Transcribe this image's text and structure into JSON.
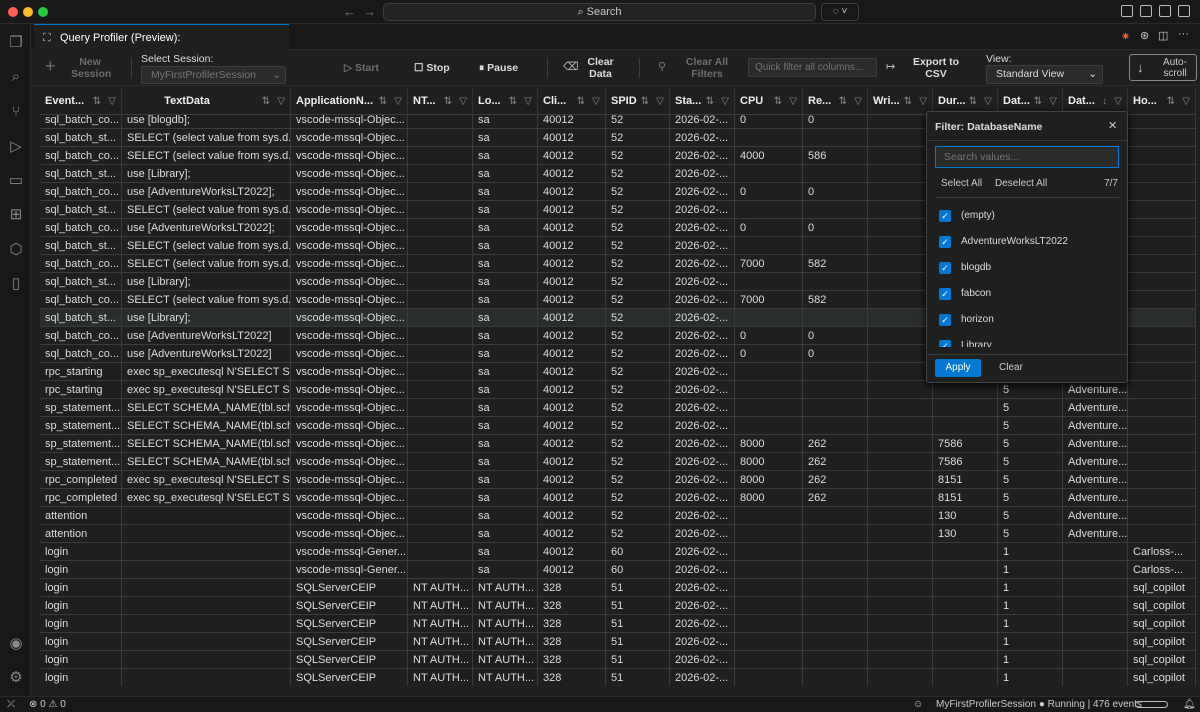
{
  "titlebar": {
    "search_label": "Search",
    "search_icon": "magnifier"
  },
  "tab": {
    "title": "Query Profiler (Preview): MyFirstProfilerSession",
    "close": "×"
  },
  "toolbar": {
    "new_session": "New Session",
    "select_session_label": "Select Session:",
    "selected_session": "MyFirstProfilerSession",
    "start": "Start",
    "stop": "Stop",
    "pause": "Pause",
    "clear_data": "Clear Data",
    "clear_all_filters": "Clear All Filters",
    "quick_filter_placeholder": "Quick filter all columns...",
    "export_csv": "Export to CSV",
    "view_label": "View:",
    "view_value": "Standard View",
    "autoscroll": "Auto-scroll"
  },
  "columns": [
    "Event...",
    "TextData",
    "ApplicationN...",
    "NT...",
    "Lo...",
    "Cli...",
    "SPID",
    "Sta...",
    "CPU",
    "Re...",
    "Wri...",
    "Dur...",
    "Dat...",
    "Dat...",
    "Ho..."
  ],
  "rows": [
    [
      "sql_batch_co...",
      "use [blogdb];",
      "vscode-mssql-Objec...",
      "",
      "sa",
      "40012",
      "52",
      "2026-02-...",
      "0",
      "0",
      "",
      "",
      "",
      "",
      ""
    ],
    [
      "sql_batch_st...",
      "SELECT (select value from sys.d...",
      "vscode-mssql-Objec...",
      "",
      "sa",
      "40012",
      "52",
      "2026-02-...",
      "",
      "",
      "",
      "",
      "",
      "",
      ""
    ],
    [
      "sql_batch_co...",
      "SELECT (select value from sys.d...",
      "vscode-mssql-Objec...",
      "",
      "sa",
      "40012",
      "52",
      "2026-02-...",
      "4000",
      "586",
      "",
      "",
      "",
      "",
      ""
    ],
    [
      "sql_batch_st...",
      "use [Library];",
      "vscode-mssql-Objec...",
      "",
      "sa",
      "40012",
      "52",
      "2026-02-...",
      "",
      "",
      "",
      "",
      "",
      "",
      ""
    ],
    [
      "sql_batch_co...",
      "use [AdventureWorksLT2022];",
      "vscode-mssql-Objec...",
      "",
      "sa",
      "40012",
      "52",
      "2026-02-...",
      "0",
      "0",
      "",
      "",
      "",
      "",
      ""
    ],
    [
      "sql_batch_st...",
      "SELECT (select value from sys.d...",
      "vscode-mssql-Objec...",
      "",
      "sa",
      "40012",
      "52",
      "2026-02-...",
      "",
      "",
      "",
      "",
      "",
      "",
      ""
    ],
    [
      "sql_batch_co...",
      "use [AdventureWorksLT2022];",
      "vscode-mssql-Objec...",
      "",
      "sa",
      "40012",
      "52",
      "2026-02-...",
      "0",
      "0",
      "",
      "",
      "",
      "",
      ""
    ],
    [
      "sql_batch_st...",
      "SELECT (select value from sys.d...",
      "vscode-mssql-Objec...",
      "",
      "sa",
      "40012",
      "52",
      "2026-02-...",
      "",
      "",
      "",
      "",
      "",
      "",
      ""
    ],
    [
      "sql_batch_co...",
      "SELECT (select value from sys.d...",
      "vscode-mssql-Objec...",
      "",
      "sa",
      "40012",
      "52",
      "2026-02-...",
      "7000",
      "582",
      "",
      "",
      "",
      "",
      ""
    ],
    [
      "sql_batch_st...",
      "use [Library];",
      "vscode-mssql-Objec...",
      "",
      "sa",
      "40012",
      "52",
      "2026-02-...",
      "",
      "",
      "",
      "",
      "",
      "",
      ""
    ],
    [
      "sql_batch_co...",
      "SELECT (select value from sys.d...",
      "vscode-mssql-Objec...",
      "",
      "sa",
      "40012",
      "52",
      "2026-02-...",
      "7000",
      "582",
      "",
      "",
      "",
      "",
      ""
    ],
    [
      "sql_batch_st...",
      "use [Library];",
      "vscode-mssql-Objec...",
      "",
      "sa",
      "40012",
      "52",
      "2026-02-...",
      "",
      "",
      "",
      "",
      "",
      "",
      ""
    ],
    [
      "sql_batch_co...",
      "use [AdventureWorksLT2022]",
      "vscode-mssql-Objec...",
      "",
      "sa",
      "40012",
      "52",
      "2026-02-...",
      "0",
      "0",
      "",
      "",
      "",
      "",
      ""
    ],
    [
      "sql_batch_co...",
      "use [AdventureWorksLT2022]",
      "vscode-mssql-Objec...",
      "",
      "sa",
      "40012",
      "52",
      "2026-02-...",
      "0",
      "0",
      "",
      "",
      "",
      "",
      ""
    ],
    [
      "rpc_starting",
      "exec sp_executesql N'SELECT S...",
      "vscode-mssql-Objec...",
      "",
      "sa",
      "40012",
      "52",
      "2026-02-...",
      "",
      "",
      "",
      "",
      "",
      "",
      ""
    ],
    [
      "rpc_starting",
      "exec sp_executesql N'SELECT S...",
      "vscode-mssql-Objec...",
      "",
      "sa",
      "40012",
      "52",
      "2026-02-...",
      "",
      "",
      "",
      "",
      "5",
      "Adventure...",
      ""
    ],
    [
      "sp_statement...",
      "SELECT SCHEMA_NAME(tbl.sch...",
      "vscode-mssql-Objec...",
      "",
      "sa",
      "40012",
      "52",
      "2026-02-...",
      "",
      "",
      "",
      "",
      "5",
      "Adventure...",
      ""
    ],
    [
      "sp_statement...",
      "SELECT SCHEMA_NAME(tbl.sch...",
      "vscode-mssql-Objec...",
      "",
      "sa",
      "40012",
      "52",
      "2026-02-...",
      "",
      "",
      "",
      "",
      "5",
      "Adventure...",
      ""
    ],
    [
      "sp_statement...",
      "SELECT SCHEMA_NAME(tbl.sch...",
      "vscode-mssql-Objec...",
      "",
      "sa",
      "40012",
      "52",
      "2026-02-...",
      "8000",
      "262",
      "",
      "7586",
      "5",
      "Adventure...",
      ""
    ],
    [
      "sp_statement...",
      "SELECT SCHEMA_NAME(tbl.sch...",
      "vscode-mssql-Objec...",
      "",
      "sa",
      "40012",
      "52",
      "2026-02-...",
      "8000",
      "262",
      "",
      "7586",
      "5",
      "Adventure...",
      ""
    ],
    [
      "rpc_completed",
      "exec sp_executesql N'SELECT S...",
      "vscode-mssql-Objec...",
      "",
      "sa",
      "40012",
      "52",
      "2026-02-...",
      "8000",
      "262",
      "",
      "8151",
      "5",
      "Adventure...",
      ""
    ],
    [
      "rpc_completed",
      "exec sp_executesql N'SELECT S...",
      "vscode-mssql-Objec...",
      "",
      "sa",
      "40012",
      "52",
      "2026-02-...",
      "8000",
      "262",
      "",
      "8151",
      "5",
      "Adventure...",
      ""
    ],
    [
      "attention",
      "",
      "vscode-mssql-Objec...",
      "",
      "sa",
      "40012",
      "52",
      "2026-02-...",
      "",
      "",
      "",
      "130",
      "5",
      "Adventure...",
      ""
    ],
    [
      "attention",
      "",
      "vscode-mssql-Objec...",
      "",
      "sa",
      "40012",
      "52",
      "2026-02-...",
      "",
      "",
      "",
      "130",
      "5",
      "Adventure...",
      ""
    ],
    [
      "login",
      "",
      "vscode-mssql-Gener...",
      "",
      "sa",
      "40012",
      "60",
      "2026-02-...",
      "",
      "",
      "",
      "",
      "1",
      "",
      "Carloss-..."
    ],
    [
      "login",
      "",
      "vscode-mssql-Gener...",
      "",
      "sa",
      "40012",
      "60",
      "2026-02-...",
      "",
      "",
      "",
      "",
      "1",
      "",
      "Carloss-..."
    ],
    [
      "login",
      "",
      "SQLServerCEIP",
      "NT AUTH...",
      "NT AUTH...",
      "328",
      "51",
      "2026-02-...",
      "",
      "",
      "",
      "",
      "1",
      "",
      "sql_copilot"
    ],
    [
      "login",
      "",
      "SQLServerCEIP",
      "NT AUTH...",
      "NT AUTH...",
      "328",
      "51",
      "2026-02-...",
      "",
      "",
      "",
      "",
      "1",
      "",
      "sql_copilot"
    ],
    [
      "login",
      "",
      "SQLServerCEIP",
      "NT AUTH...",
      "NT AUTH...",
      "328",
      "51",
      "2026-02-...",
      "",
      "",
      "",
      "",
      "1",
      "",
      "sql_copilot"
    ],
    [
      "login",
      "",
      "SQLServerCEIP",
      "NT AUTH...",
      "NT AUTH...",
      "328",
      "51",
      "2026-02-...",
      "",
      "",
      "",
      "",
      "1",
      "",
      "sql_copilot"
    ],
    [
      "login",
      "",
      "SQLServerCEIP",
      "NT AUTH...",
      "NT AUTH...",
      "328",
      "51",
      "2026-02-...",
      "",
      "",
      "",
      "",
      "1",
      "",
      "sql_copilot"
    ],
    [
      "login",
      "",
      "SQLServerCEIP",
      "NT AUTH...",
      "NT AUTH...",
      "328",
      "51",
      "2026-02-...",
      "",
      "",
      "",
      "",
      "1",
      "",
      "sql_copilot"
    ]
  ],
  "filter_popup": {
    "title": "Filter: DatabaseName",
    "search_placeholder": "Search values...",
    "select_all": "Select All",
    "deselect_all": "Deselect All",
    "count": "7/7",
    "values": [
      "(empty)",
      "AdventureWorksLT2022",
      "blogdb",
      "fabcon",
      "horizon",
      "Library"
    ],
    "apply": "Apply",
    "clear": "Clear"
  },
  "status": {
    "errors": "0",
    "warnings": "0",
    "session": "MyFirstProfilerSession",
    "state": "Running | 476 events"
  },
  "colors": {
    "accent": "#0078d4",
    "background": "#1f1f1f"
  }
}
